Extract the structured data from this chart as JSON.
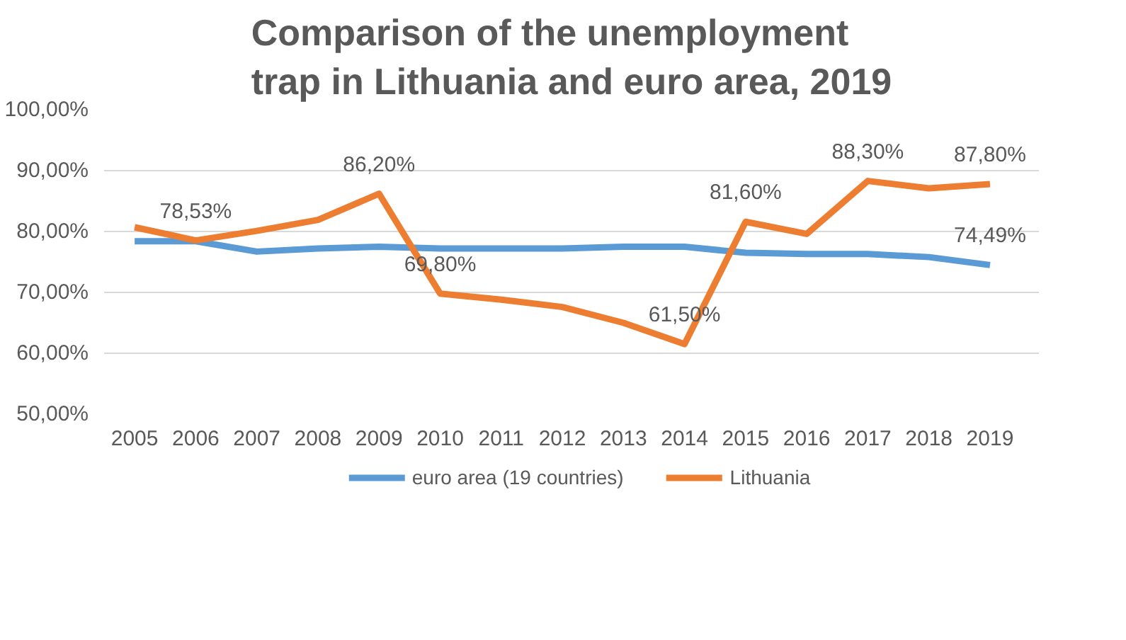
{
  "chart_data": {
    "type": "line",
    "title": "Comparison of the unemployment trap in Lithuania and euro area, 2019",
    "categories": [
      "2005",
      "2006",
      "2007",
      "2008",
      "2009",
      "2010",
      "2011",
      "2012",
      "2013",
      "2014",
      "2015",
      "2016",
      "2017",
      "2018",
      "2019"
    ],
    "series": [
      {
        "name": "euro area (19 countries)",
        "color": "#5b9bd5",
        "values": [
          78.4,
          78.4,
          76.7,
          77.2,
          77.5,
          77.2,
          77.2,
          77.2,
          77.5,
          77.5,
          76.5,
          76.3,
          76.3,
          75.8,
          74.49
        ],
        "value_labels": [
          null,
          null,
          null,
          null,
          null,
          null,
          null,
          null,
          null,
          null,
          null,
          null,
          null,
          null,
          "74,49%"
        ]
      },
      {
        "name": "Lithuania",
        "color": "#ed7d31",
        "values": [
          80.7,
          78.53,
          80.1,
          81.9,
          86.2,
          69.8,
          68.8,
          67.6,
          65.0,
          61.5,
          81.6,
          79.6,
          88.3,
          87.1,
          87.8
        ],
        "value_labels": [
          null,
          "78,53%",
          null,
          null,
          "86,20%",
          "69,80%",
          null,
          null,
          null,
          "61,50%",
          "81,60%",
          null,
          "88,30%",
          null,
          "87,80%"
        ]
      }
    ],
    "ylim": [
      50,
      100
    ],
    "yticks": [
      {
        "value": 50,
        "label": "50,00%"
      },
      {
        "value": 60,
        "label": "60,00%"
      },
      {
        "value": 70,
        "label": "70,00%"
      },
      {
        "value": 80,
        "label": "80,00%"
      },
      {
        "value": 90,
        "label": "90,00%"
      },
      {
        "value": 100,
        "label": "100,00%"
      }
    ],
    "grid": "y",
    "legend": "bottom",
    "line_style": "solid"
  }
}
